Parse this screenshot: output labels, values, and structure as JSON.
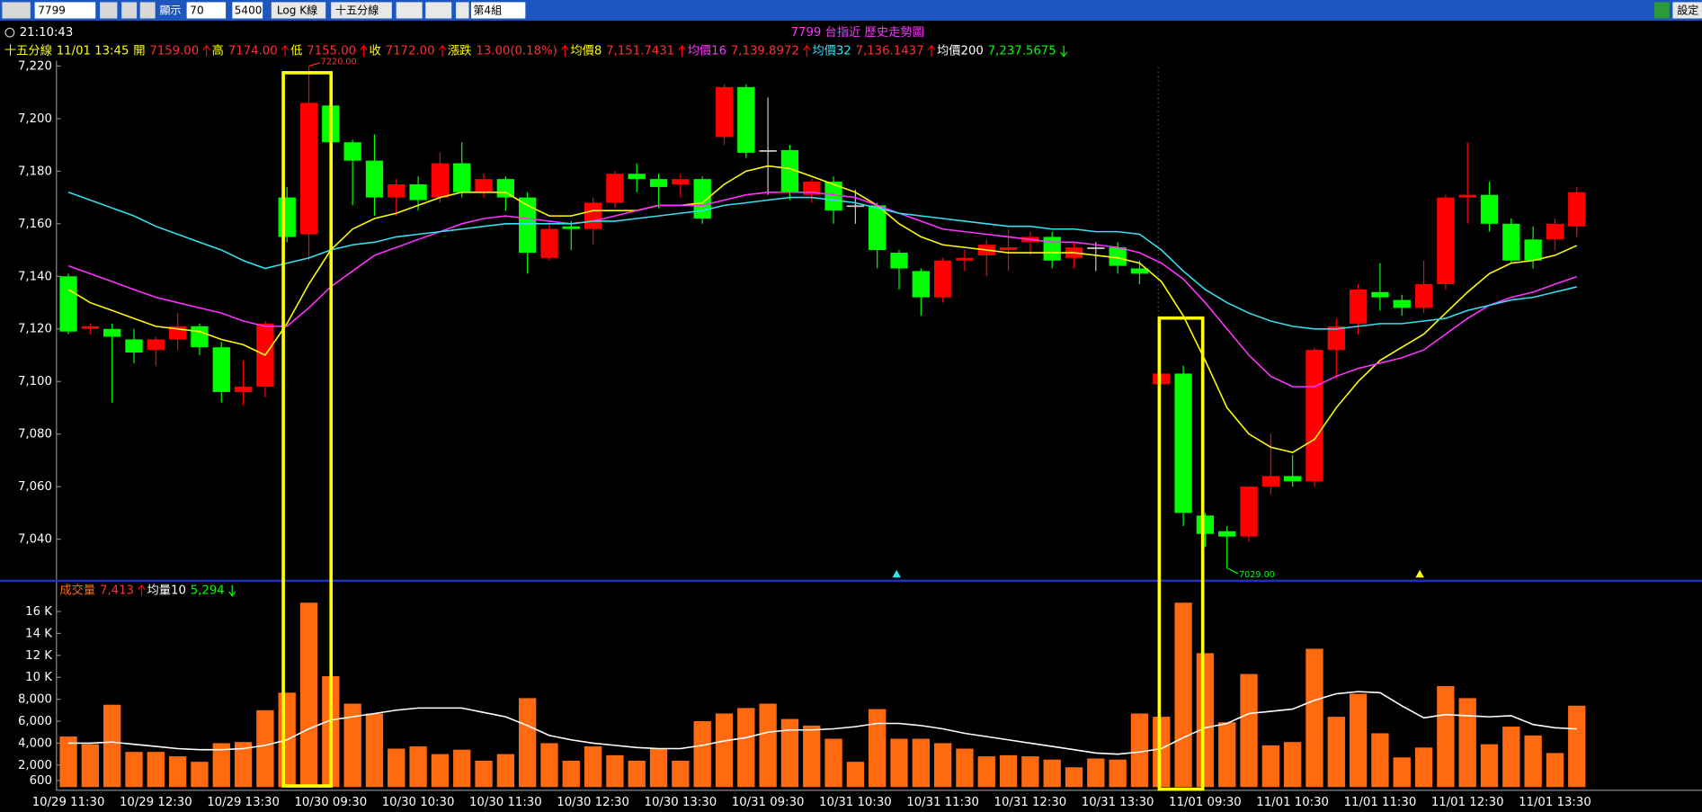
{
  "toolbar": {
    "symbol": "7799",
    "display_label": "顯示",
    "display_count": "70",
    "total": "5400",
    "log_button": "Log K線",
    "period": "十五分線",
    "group": "第4組",
    "settings": "設定"
  },
  "window_title": "7799 台指近  歷史走勢圖",
  "clock": "21:10:43",
  "chart_data": [
    {
      "type": "candlestick",
      "info": {
        "period": "十五分線",
        "time": "11/01 13:45",
        "open_label": "開",
        "open": "7159.00",
        "high_label": "高",
        "high": "7174.00",
        "low_label": "低",
        "low": "7155.00",
        "close_label": "收",
        "close": "7172.00",
        "change_label": "漲跌",
        "change": "13.00(0.18%)",
        "ma200_label": "均價200",
        "ma200": "7,237.5675"
      },
      "categories": [
        "10/29 11:30",
        null,
        null,
        null,
        "10/29 12:30",
        null,
        null,
        null,
        "10/29 13:30",
        null,
        null,
        null,
        "10/30 09:30",
        null,
        null,
        null,
        "10/30 10:30",
        null,
        null,
        null,
        "10/30 11:30",
        null,
        null,
        null,
        "10/30 12:30",
        null,
        null,
        null,
        "10/30 13:30",
        null,
        null,
        null,
        "10/31 09:30",
        null,
        null,
        null,
        "10/31 10:30",
        null,
        null,
        null,
        "10/31 11:30",
        null,
        null,
        null,
        "10/31 12:30",
        null,
        null,
        null,
        "10/31 13:30",
        null,
        null,
        null,
        "11/01 09:30",
        null,
        null,
        null,
        "11/01 10:30",
        null,
        null,
        null,
        "11/01 11:30",
        null,
        null,
        null,
        "11/01 12:30",
        null,
        null,
        null,
        "11/01 13:30",
        null
      ],
      "open": [
        7140,
        7120,
        7120,
        7116,
        7112,
        7116,
        7121,
        7113,
        7096,
        7098,
        7170,
        7156,
        7205,
        7191,
        7184,
        7170,
        7175,
        7170,
        7183,
        7172,
        7177,
        7170,
        7147,
        7159,
        7158,
        7168,
        7179,
        7177,
        7175,
        7177,
        7193,
        7212,
        7188,
        7188,
        7171,
        7176,
        7167,
        7167,
        7149,
        7142,
        7132,
        7146,
        7148,
        7150,
        7153,
        7155,
        7147,
        7151,
        7151,
        7143,
        7099,
        7103,
        7049,
        7043,
        7041,
        7060,
        7064,
        7062,
        7112,
        7122,
        7134,
        7131,
        7128,
        7137,
        7170,
        7171,
        7160,
        7154,
        7154,
        7159
      ],
      "high": [
        7141,
        7122,
        7122,
        7120,
        7117,
        7126,
        7122,
        7115,
        7108,
        7123,
        7174,
        7220,
        7206,
        7192,
        7194,
        7177,
        7178,
        7187,
        7191,
        7179,
        7178,
        7172,
        7160,
        7161,
        7170,
        7180,
        7183,
        7179,
        7179,
        7178,
        7213,
        7213,
        7208,
        7190,
        7177,
        7178,
        7173,
        7168,
        7150,
        7143,
        7147,
        7150,
        7154,
        7158,
        7157,
        7157,
        7153,
        7153,
        7153,
        7146,
        7103,
        7106,
        7050,
        7045,
        7060,
        7080,
        7072,
        7113,
        7124,
        7137,
        7145,
        7133,
        7146,
        7171,
        7191,
        7176,
        7162,
        7159,
        7162,
        7174
      ],
      "low": [
        7118,
        7118,
        7092,
        7107,
        7106,
        7112,
        7110,
        7092,
        7091,
        7094,
        7153,
        7146,
        7188,
        7167,
        7163,
        7163,
        7165,
        7168,
        7170,
        7170,
        7165,
        7141,
        7146,
        7150,
        7152,
        7166,
        7172,
        7166,
        7170,
        7160,
        7190,
        7185,
        7171,
        7169,
        7168,
        7160,
        7160,
        7143,
        7135,
        7125,
        7130,
        7142,
        7140,
        7142,
        7148,
        7143,
        7143,
        7142,
        7141,
        7137,
        7099,
        7045,
        7037,
        7029,
        7039,
        7057,
        7060,
        7060,
        7101,
        7118,
        7127,
        7125,
        7126,
        7135,
        7160,
        7157,
        7145,
        7143,
        7150,
        7155
      ],
      "close": [
        7119,
        7121,
        7117,
        7111,
        7116,
        7121,
        7113,
        7096,
        7098,
        7122,
        7155,
        7206,
        7191,
        7184,
        7170,
        7175,
        7169,
        7183,
        7172,
        7177,
        7170,
        7149,
        7158,
        7158,
        7168,
        7179,
        7177,
        7174,
        7177,
        7162,
        7212,
        7187,
        7188,
        7172,
        7176,
        7165,
        7167,
        7150,
        7143,
        7132,
        7146,
        7147,
        7152,
        7151,
        7155,
        7146,
        7151,
        7151,
        7144,
        7141,
        7103,
        7050,
        7042,
        7041,
        7060,
        7064,
        7062,
        7112,
        7121,
        7135,
        7132,
        7128,
        7137,
        7170,
        7171,
        7160,
        7146,
        7146,
        7160,
        7172
      ],
      "up_color": "#ff0000",
      "down_color": "#00ff00",
      "flat_color": "#c8c8c8",
      "series": [
        {
          "name": "均價8",
          "color": "#ffff00",
          "legend_value": "7,151.7431",
          "values": [
            7135,
            7130,
            7127,
            7124,
            7121,
            7120,
            7119,
            7116,
            7114,
            7110,
            7122,
            7137,
            7150,
            7158,
            7162,
            7164,
            7167,
            7170,
            7172,
            7172,
            7172,
            7167,
            7163,
            7163,
            7165,
            7165,
            7165,
            7167,
            7167,
            7168,
            7175,
            7180,
            7182,
            7181,
            7178,
            7175,
            7172,
            7167,
            7160,
            7155,
            7152,
            7151,
            7150,
            7149,
            7149,
            7149,
            7149,
            7148,
            7147,
            7145,
            7138,
            7125,
            7108,
            7090,
            7080,
            7075,
            7073,
            7078,
            7090,
            7100,
            7108,
            7113,
            7118,
            7126,
            7134,
            7141,
            7145,
            7146,
            7148,
            7151.7
          ]
        },
        {
          "name": "均價16",
          "color": "#ff33ff",
          "legend_value": "7,139.8972",
          "values": [
            7144,
            7141,
            7138,
            7135,
            7132,
            7130,
            7128,
            7126,
            7123,
            7121,
            7121,
            7128,
            7136,
            7142,
            7148,
            7151,
            7154,
            7157,
            7160,
            7162,
            7163,
            7162,
            7161,
            7160,
            7161,
            7163,
            7165,
            7167,
            7167,
            7167,
            7169,
            7171,
            7172,
            7172,
            7172,
            7171,
            7170,
            7167,
            7164,
            7161,
            7158,
            7157,
            7156,
            7155,
            7154,
            7153,
            7153,
            7152,
            7151,
            7149,
            7145,
            7139,
            7130,
            7120,
            7110,
            7102,
            7098,
            7098,
            7102,
            7105,
            7107,
            7109,
            7112,
            7118,
            7124,
            7129,
            7132,
            7134,
            7137,
            7139.9
          ]
        },
        {
          "name": "均價32",
          "color": "#33e0f0",
          "legend_value": "7,136.1437",
          "values": [
            7172,
            7169,
            7166,
            7163,
            7159,
            7156,
            7153,
            7150,
            7146,
            7143,
            7145,
            7147,
            7150,
            7152,
            7153,
            7155,
            7156,
            7157,
            7158,
            7159,
            7160,
            7160,
            7160,
            7160,
            7161,
            7161,
            7162,
            7163,
            7164,
            7165,
            7167,
            7168,
            7169,
            7170,
            7170,
            7169,
            7168,
            7166,
            7164,
            7163,
            7162,
            7161,
            7160,
            7159,
            7159,
            7158,
            7158,
            7157,
            7157,
            7156,
            7150,
            7142,
            7135,
            7130,
            7126,
            7123,
            7121,
            7120,
            7120,
            7121,
            7122,
            7122,
            7123,
            7124,
            7127,
            7129,
            7131,
            7132,
            7134,
            7136
          ]
        }
      ],
      "ylim": [
        7025,
        7222
      ],
      "yticks": [
        {
          "value": 7040,
          "label": "7,040"
        },
        {
          "value": 7060,
          "label": "7,060"
        },
        {
          "value": 7080,
          "label": "7,080"
        },
        {
          "value": 7100,
          "label": "7,100"
        },
        {
          "value": 7120,
          "label": "7,120"
        },
        {
          "value": 7140,
          "label": "7,140"
        },
        {
          "value": 7160,
          "label": "7,160"
        },
        {
          "value": 7180,
          "label": "7,180"
        },
        {
          "value": 7200,
          "label": "7,200"
        },
        {
          "value": 7220,
          "label": "7,220"
        }
      ],
      "annotations": {
        "max": "7220.00",
        "min": "7029.00"
      }
    },
    {
      "type": "bar",
      "name": "成交量",
      "legend_value": "7,413",
      "color": "#ff6a10",
      "values": [
        4600,
        3900,
        7500,
        3200,
        3200,
        2800,
        2300,
        4000,
        4100,
        7000,
        8600,
        16800,
        10100,
        7600,
        6700,
        3500,
        3700,
        3000,
        3400,
        2400,
        3000,
        8100,
        4000,
        2400,
        3700,
        2900,
        2400,
        3500,
        2400,
        6000,
        6700,
        7200,
        7600,
        6200,
        5600,
        4400,
        2300,
        7100,
        4400,
        4400,
        4000,
        3500,
        2800,
        2900,
        2800,
        2500,
        1800,
        2600,
        2500,
        6700,
        6400,
        16800,
        12200,
        5900,
        10300,
        3800,
        4100,
        12600,
        6400,
        8500,
        4900,
        2700,
        3600,
        9200,
        8100,
        3900,
        5500,
        4700,
        3100,
        7413
      ],
      "series": [
        {
          "name": "均量10",
          "color": "#ffffff",
          "legend_value": "5,294",
          "values": [
            4000,
            4000,
            4100,
            3900,
            3700,
            3500,
            3400,
            3400,
            3500,
            3800,
            4300,
            5300,
            6100,
            6400,
            6700,
            7000,
            7200,
            7200,
            7200,
            6800,
            6400,
            5600,
            4700,
            4300,
            4000,
            3800,
            3600,
            3500,
            3500,
            3800,
            4200,
            4500,
            5000,
            5200,
            5200,
            5300,
            5500,
            5800,
            5800,
            5600,
            5300,
            4900,
            4600,
            4300,
            4000,
            3700,
            3400,
            3100,
            3000,
            3200,
            3500,
            4500,
            5400,
            5800,
            6700,
            6900,
            7100,
            7900,
            8500,
            8700,
            8600,
            7400,
            6300,
            6600,
            6500,
            6400,
            6500,
            5700,
            5400,
            5294
          ]
        }
      ],
      "ylim": [
        0,
        18500
      ],
      "yticks": [
        600,
        {
          "value": 2000,
          "label": "2,000"
        },
        {
          "value": 4000,
          "label": "4,000"
        },
        {
          "value": 6000,
          "label": "6,000"
        },
        {
          "value": 8000,
          "label": "8,000"
        },
        {
          "value": 10000,
          "label": "10 K"
        },
        {
          "value": 12000,
          "label": "12 K"
        },
        {
          "value": 14000,
          "label": "14 K"
        },
        {
          "value": 16000,
          "label": "16 K"
        }
      ]
    }
  ]
}
